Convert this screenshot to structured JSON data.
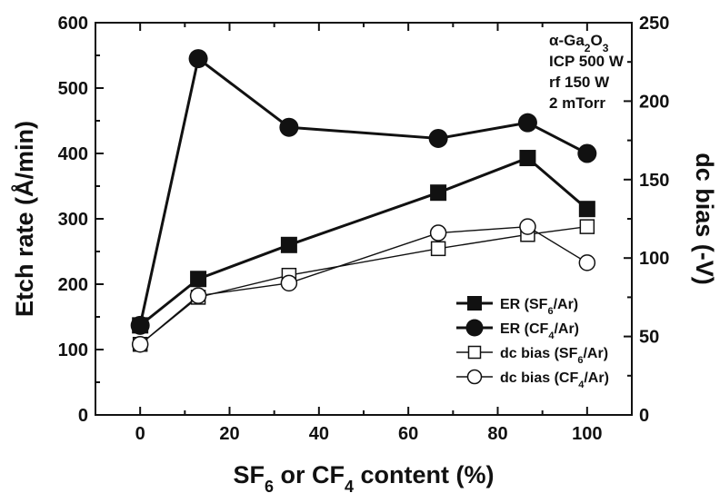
{
  "chart_data": {
    "type": "line",
    "x": [
      0,
      13,
      33.3,
      66.7,
      86.7,
      100
    ],
    "xlim": [
      -10,
      110
    ],
    "xticks": [
      0,
      20,
      40,
      60,
      80,
      100
    ],
    "ylim": [
      0,
      600
    ],
    "yticks": [
      0,
      100,
      200,
      300,
      400,
      500,
      600
    ],
    "y2lim": [
      0,
      250
    ],
    "y2ticks": [
      0,
      50,
      100,
      150,
      200,
      250
    ],
    "xlabel": "SF6 or CF4 content (%)",
    "ylabel": "Etch rate (Å/min)",
    "y2label": "dc bias (-V)",
    "annotation": [
      "α-Ga2O3",
      "ICP 500 W",
      "rf 150 W",
      "2 mTorr"
    ],
    "legend_position": "lower-right",
    "series": [
      {
        "name": "ER (SF6/Ar)",
        "axis": "left",
        "marker": "filled-square",
        "line_width": "thick",
        "values": [
          137,
          208,
          260,
          340,
          393,
          315
        ]
      },
      {
        "name": "ER (CF4/Ar)",
        "axis": "left",
        "marker": "filled-circle",
        "line_width": "thick",
        "values": [
          137,
          545,
          440,
          423,
          447,
          400
        ]
      },
      {
        "name": "dc bias (SF6/Ar)",
        "axis": "right",
        "marker": "open-square",
        "line_width": "thin",
        "values": [
          45,
          75,
          89,
          106,
          115,
          120
        ]
      },
      {
        "name": "dc bias (CF4/Ar)",
        "axis": "right",
        "marker": "open-circle",
        "line_width": "thin",
        "values": [
          45,
          76,
          84,
          116,
          120,
          97
        ]
      }
    ],
    "colors": {
      "ink": "#111111",
      "background": "#ffffff"
    }
  }
}
